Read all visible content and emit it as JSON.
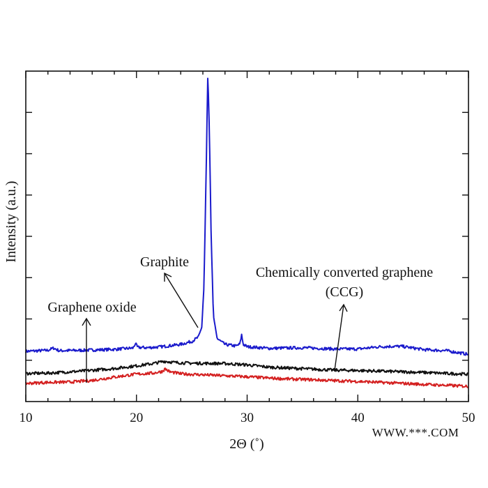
{
  "chart_data": {
    "type": "line",
    "title": "",
    "xlabel": "2Θ (˚)",
    "ylabel": "Intensity (a.u.)",
    "xlim": [
      10,
      50
    ],
    "ylim": [
      0,
      100
    ],
    "x_ticks": [
      10,
      20,
      30,
      40,
      50
    ],
    "grid": false,
    "legend": "none",
    "series": [
      {
        "key": "graphite",
        "color": "#1a1acc",
        "points": [
          [
            10,
            15.2
          ],
          [
            12,
            15.5
          ],
          [
            12.5,
            16.2
          ],
          [
            13,
            15.4
          ],
          [
            15,
            15.5
          ],
          [
            18,
            15.8
          ],
          [
            19.7,
            16.2
          ],
          [
            19.9,
            17.6
          ],
          [
            20.1,
            16.4
          ],
          [
            21,
            16.3
          ],
          [
            22,
            16.5
          ],
          [
            23,
            16.9
          ],
          [
            24,
            17.3
          ],
          [
            25,
            18.2
          ],
          [
            25.6,
            19.5
          ],
          [
            25.9,
            22.5
          ],
          [
            26.1,
            35
          ],
          [
            26.3,
            70
          ],
          [
            26.45,
            99.8
          ],
          [
            26.6,
            80
          ],
          [
            26.75,
            50
          ],
          [
            26.95,
            26
          ],
          [
            27.3,
            19
          ],
          [
            28,
            17.3
          ],
          [
            29,
            16.8
          ],
          [
            29.35,
            17.4
          ],
          [
            29.5,
            20.2
          ],
          [
            29.65,
            17.3
          ],
          [
            30,
            16.6
          ],
          [
            32,
            16.1
          ],
          [
            35,
            16.3
          ],
          [
            38,
            15.9
          ],
          [
            40,
            15.9
          ],
          [
            42,
            16.6
          ],
          [
            43,
            16.7
          ],
          [
            44,
            16.7
          ],
          [
            46,
            15.7
          ],
          [
            48,
            15.4
          ],
          [
            50,
            14.3
          ]
        ]
      },
      {
        "key": "ccg",
        "color": "#111111",
        "points": [
          [
            10,
            8.5
          ],
          [
            12,
            8.6
          ],
          [
            15,
            9.2
          ],
          [
            18,
            10
          ],
          [
            20,
            10.8
          ],
          [
            21.5,
            11.5
          ],
          [
            22.5,
            12.2
          ],
          [
            23.5,
            11.8
          ],
          [
            25,
            11.6
          ],
          [
            28,
            11.5
          ],
          [
            30,
            11.1
          ],
          [
            32,
            10.4
          ],
          [
            34,
            10.1
          ],
          [
            36,
            9.8
          ],
          [
            38,
            9.5
          ],
          [
            40,
            9.4
          ],
          [
            42,
            9.2
          ],
          [
            44,
            9.0
          ],
          [
            46,
            8.8
          ],
          [
            48,
            8.5
          ],
          [
            50,
            8.3
          ]
        ]
      },
      {
        "key": "graphene_oxide",
        "color": "#d42020",
        "points": [
          [
            10,
            5.5
          ],
          [
            12,
            5.8
          ],
          [
            14,
            5.9
          ],
          [
            16,
            6.4
          ],
          [
            18,
            7.4
          ],
          [
            20,
            8.3
          ],
          [
            21.5,
            8.6
          ],
          [
            22.3,
            9.1
          ],
          [
            22.6,
            9.9
          ],
          [
            23,
            9.0
          ],
          [
            24,
            8.4
          ],
          [
            26,
            8.1
          ],
          [
            28,
            7.8
          ],
          [
            30,
            7.5
          ],
          [
            32,
            7.1
          ],
          [
            34,
            6.8
          ],
          [
            36,
            6.6
          ],
          [
            38,
            6.3
          ],
          [
            40,
            6.1
          ],
          [
            42,
            5.8
          ],
          [
            44,
            5.5
          ],
          [
            46,
            5.2
          ],
          [
            48,
            4.9
          ],
          [
            50,
            4.6
          ]
        ]
      }
    ],
    "annotations": [
      {
        "key": "graphite",
        "lines": [
          "Graphite"
        ]
      },
      {
        "key": "ccg",
        "lines": [
          "Chemically converted graphene",
          "(CCG)"
        ]
      },
      {
        "key": "graphene_oxide",
        "lines": [
          "Graphene oxide"
        ]
      }
    ]
  },
  "watermark": "WWW.***.COM"
}
